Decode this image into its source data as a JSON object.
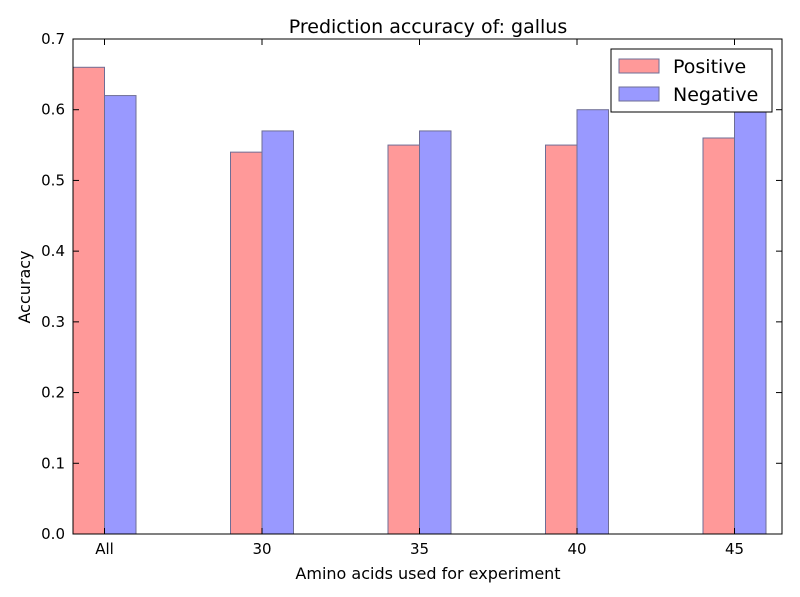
{
  "chart_data": {
    "type": "bar",
    "title": "Prediction accuracy of: gallus",
    "xlabel": "Amino acids used for experiment",
    "ylabel": "Accuracy",
    "categories": [
      "All",
      "30",
      "35",
      "40",
      "45"
    ],
    "series": [
      {
        "name": "Positive",
        "values": [
          0.66,
          0.54,
          0.55,
          0.55,
          0.56
        ],
        "color": "#ff9999"
      },
      {
        "name": "Negative",
        "values": [
          0.62,
          0.57,
          0.57,
          0.6,
          0.6
        ],
        "color": "#9999ff"
      }
    ],
    "ylim": [
      0,
      0.7
    ],
    "yticks": [
      "0.0",
      "0.1",
      "0.2",
      "0.3",
      "0.4",
      "0.5",
      "0.6",
      "0.7"
    ],
    "legend_position": "top-right",
    "grid": false
  }
}
